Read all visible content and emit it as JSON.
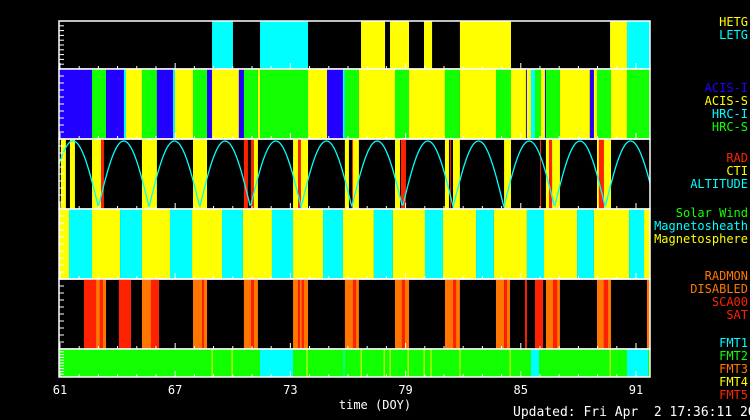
{
  "colors": {
    "yellow": "#ffff00",
    "cyan": "#00ffff",
    "green": "#11ff00",
    "blue": "#2200ff",
    "red": "#ff2200",
    "orange": "#ff7700",
    "white": "#ffffff"
  },
  "chart_data": {
    "type": "timeline",
    "xlabel": "time (DOY)",
    "xlim": [
      60.95,
      91.73
    ],
    "xticks": [
      61,
      67,
      73,
      79,
      85,
      91
    ],
    "updated": "Updated: Fri Apr  2 17:36:11 2004",
    "panels": [
      {
        "name": "grating",
        "legend": [
          {
            "label": "HETG",
            "color": "yellow"
          },
          {
            "label": "LETG",
            "color": "cyan"
          }
        ],
        "segments": [
          {
            "s": 68.92,
            "e": 70.01,
            "c": "cyan"
          },
          {
            "s": 71.42,
            "e": 73.92,
            "c": "cyan"
          },
          {
            "s": 76.68,
            "e": 77.93,
            "c": "yellow"
          },
          {
            "s": 78.19,
            "e": 79.18,
            "c": "yellow"
          },
          {
            "s": 79.96,
            "e": 80.38,
            "c": "yellow"
          },
          {
            "s": 81.83,
            "e": 84.49,
            "c": "yellow"
          },
          {
            "s": 89.65,
            "e": 90.53,
            "c": "yellow"
          },
          {
            "s": 90.53,
            "e": 91.73,
            "c": "cyan"
          }
        ]
      },
      {
        "name": "instrument",
        "legend": [
          {
            "label": "ACIS-I",
            "color": "blue"
          },
          {
            "label": "ACIS-S",
            "color": "yellow"
          },
          {
            "label": "HRC-I",
            "color": "cyan"
          },
          {
            "label": "HRC-S",
            "color": "green"
          }
        ],
        "segments": [
          {
            "s": 60.95,
            "e": 62.67,
            "c": "blue"
          },
          {
            "s": 62.67,
            "e": 63.4,
            "c": "green"
          },
          {
            "s": 63.4,
            "e": 64.33,
            "c": "blue"
          },
          {
            "s": 64.33,
            "e": 64.44,
            "c": "cyan"
          },
          {
            "s": 64.44,
            "e": 65.27,
            "c": "yellow"
          },
          {
            "s": 65.27,
            "e": 66.05,
            "c": "green"
          },
          {
            "s": 66.05,
            "e": 66.89,
            "c": "blue"
          },
          {
            "s": 66.89,
            "e": 66.99,
            "c": "cyan"
          },
          {
            "s": 66.99,
            "e": 67.93,
            "c": "yellow"
          },
          {
            "s": 67.93,
            "e": 68.66,
            "c": "green"
          },
          {
            "s": 68.66,
            "e": 68.92,
            "c": "blue"
          },
          {
            "s": 68.92,
            "e": 70.32,
            "c": "yellow"
          },
          {
            "s": 70.32,
            "e": 70.58,
            "c": "blue"
          },
          {
            "s": 70.58,
            "e": 71.31,
            "c": "green"
          },
          {
            "s": 71.31,
            "e": 71.42,
            "c": "yellow"
          },
          {
            "s": 71.42,
            "e": 73.92,
            "c": "green"
          },
          {
            "s": 73.92,
            "e": 74.91,
            "c": "yellow"
          },
          {
            "s": 74.91,
            "e": 75.74,
            "c": "blue"
          },
          {
            "s": 75.74,
            "e": 75.84,
            "c": "cyan"
          },
          {
            "s": 75.84,
            "e": 76.57,
            "c": "green"
          },
          {
            "s": 76.57,
            "e": 78.45,
            "c": "yellow"
          },
          {
            "s": 78.45,
            "e": 79.18,
            "c": "green"
          },
          {
            "s": 79.18,
            "e": 81.05,
            "c": "yellow"
          },
          {
            "s": 81.05,
            "e": 81.83,
            "c": "green"
          },
          {
            "s": 81.83,
            "e": 83.71,
            "c": "yellow"
          },
          {
            "s": 83.71,
            "e": 84.49,
            "c": "green"
          },
          {
            "s": 84.49,
            "e": 85.27,
            "c": "yellow"
          },
          {
            "s": 85.27,
            "e": 85.32,
            "c": "blue"
          },
          {
            "s": 85.32,
            "e": 85.53,
            "c": "yellow"
          },
          {
            "s": 85.53,
            "e": 85.74,
            "c": "cyan"
          },
          {
            "s": 85.74,
            "e": 86.05,
            "c": "green"
          },
          {
            "s": 86.05,
            "e": 86.26,
            "c": "yellow"
          },
          {
            "s": 86.26,
            "e": 86.31,
            "c": "blue"
          },
          {
            "s": 86.31,
            "e": 87.04,
            "c": "green"
          },
          {
            "s": 87.04,
            "e": 88.6,
            "c": "yellow"
          },
          {
            "s": 88.6,
            "e": 88.81,
            "c": "blue"
          },
          {
            "s": 88.81,
            "e": 88.97,
            "c": "yellow"
          },
          {
            "s": 88.97,
            "e": 89.7,
            "c": "green"
          },
          {
            "s": 89.7,
            "e": 90.53,
            "c": "yellow"
          },
          {
            "s": 90.53,
            "e": 91.73,
            "c": "green"
          }
        ]
      },
      {
        "name": "radiation",
        "legend": [
          {
            "label": "RAD",
            "color": "red"
          },
          {
            "label": "CTI",
            "color": "yellow"
          },
          {
            "label": "ALTITUDE",
            "color": "cyan"
          }
        ],
        "altitude_model": {
          "period_days": 2.64,
          "trough_doy": 63.0
        },
        "segments": [
          {
            "s": 61.05,
            "e": 61.31,
            "c": "yellow"
          },
          {
            "s": 61.52,
            "e": 61.78,
            "c": "yellow"
          },
          {
            "s": 62.67,
            "e": 63.14,
            "c": "yellow"
          },
          {
            "s": 63.14,
            "e": 63.29,
            "c": "red"
          },
          {
            "s": 65.27,
            "e": 66.05,
            "c": "yellow"
          },
          {
            "s": 67.93,
            "e": 68.66,
            "c": "yellow"
          },
          {
            "s": 70.58,
            "e": 70.79,
            "c": "red"
          },
          {
            "s": 70.95,
            "e": 71.1,
            "c": "red"
          },
          {
            "s": 71.1,
            "e": 71.31,
            "c": "yellow"
          },
          {
            "s": 73.14,
            "e": 73.4,
            "c": "yellow"
          },
          {
            "s": 73.4,
            "e": 73.55,
            "c": "red"
          },
          {
            "s": 73.55,
            "e": 73.92,
            "c": "yellow"
          },
          {
            "s": 75.84,
            "e": 76.05,
            "c": "yellow"
          },
          {
            "s": 76.21,
            "e": 76.26,
            "c": "red"
          },
          {
            "s": 76.26,
            "e": 76.57,
            "c": "yellow"
          },
          {
            "s": 78.45,
            "e": 78.71,
            "c": "yellow"
          },
          {
            "s": 78.76,
            "e": 79.02,
            "c": "red"
          },
          {
            "s": 81.05,
            "e": 81.26,
            "c": "yellow"
          },
          {
            "s": 81.31,
            "e": 81.36,
            "c": "red"
          },
          {
            "s": 81.47,
            "e": 81.83,
            "c": "yellow"
          },
          {
            "s": 84.13,
            "e": 84.49,
            "c": "yellow"
          },
          {
            "s": 86.0,
            "e": 86.05,
            "c": "red"
          },
          {
            "s": 86.31,
            "e": 86.47,
            "c": "yellow"
          },
          {
            "s": 86.47,
            "e": 86.63,
            "c": "red"
          },
          {
            "s": 86.63,
            "e": 87.04,
            "c": "yellow"
          },
          {
            "s": 88.97,
            "e": 89.07,
            "c": "yellow"
          },
          {
            "s": 89.07,
            "e": 89.33,
            "c": "red"
          },
          {
            "s": 89.33,
            "e": 89.7,
            "c": "yellow"
          }
        ]
      },
      {
        "name": "environment",
        "legend": [
          {
            "label": "Solar Wind",
            "color": "green"
          },
          {
            "label": "Magnetosheath",
            "color": "cyan"
          },
          {
            "label": "Magnetosphere",
            "color": "yellow"
          }
        ],
        "segments": [
          {
            "s": 60.95,
            "e": 61.47,
            "c": "yellow"
          },
          {
            "s": 61.47,
            "e": 62.67,
            "c": "cyan"
          },
          {
            "s": 62.67,
            "e": 64.13,
            "c": "yellow"
          },
          {
            "s": 64.13,
            "e": 65.27,
            "c": "cyan"
          },
          {
            "s": 65.27,
            "e": 66.73,
            "c": "yellow"
          },
          {
            "s": 66.73,
            "e": 67.88,
            "c": "cyan"
          },
          {
            "s": 67.88,
            "e": 69.44,
            "c": "yellow"
          },
          {
            "s": 69.44,
            "e": 70.53,
            "c": "cyan"
          },
          {
            "s": 70.53,
            "e": 72.04,
            "c": "yellow"
          },
          {
            "s": 72.04,
            "e": 73.14,
            "c": "cyan"
          },
          {
            "s": 73.14,
            "e": 74.7,
            "c": "yellow"
          },
          {
            "s": 74.7,
            "e": 75.74,
            "c": "cyan"
          },
          {
            "s": 75.74,
            "e": 77.35,
            "c": "yellow"
          },
          {
            "s": 77.35,
            "e": 78.34,
            "c": "cyan"
          },
          {
            "s": 78.34,
            "e": 80.01,
            "c": "yellow"
          },
          {
            "s": 80.01,
            "e": 80.95,
            "c": "cyan"
          },
          {
            "s": 80.95,
            "e": 82.67,
            "c": "yellow"
          },
          {
            "s": 82.67,
            "e": 83.6,
            "c": "cyan"
          },
          {
            "s": 83.6,
            "e": 85.32,
            "c": "yellow"
          },
          {
            "s": 85.32,
            "e": 86.21,
            "c": "cyan"
          },
          {
            "s": 86.21,
            "e": 87.93,
            "c": "yellow"
          },
          {
            "s": 87.93,
            "e": 88.81,
            "c": "cyan"
          },
          {
            "s": 88.81,
            "e": 90.64,
            "c": "yellow"
          },
          {
            "s": 90.64,
            "e": 91.42,
            "c": "cyan"
          },
          {
            "s": 91.42,
            "e": 91.73,
            "c": "yellow"
          }
        ]
      },
      {
        "name": "radmon",
        "legend": [
          {
            "label": "RADMON",
            "color": "orange"
          },
          {
            "label": "DISABLED",
            "color": "orange"
          },
          {
            "label": "SCA00",
            "color": "red"
          },
          {
            "label": "SAT",
            "color": "red"
          }
        ],
        "segments": [
          {
            "s": 62.25,
            "e": 62.88,
            "c": "red"
          },
          {
            "s": 62.88,
            "e": 63.08,
            "c": "orange"
          },
          {
            "s": 63.08,
            "e": 63.24,
            "c": "red"
          },
          {
            "s": 63.24,
            "e": 63.4,
            "c": "orange"
          },
          {
            "s": 64.07,
            "e": 64.7,
            "c": "red"
          },
          {
            "s": 65.27,
            "e": 65.74,
            "c": "orange"
          },
          {
            "s": 65.74,
            "e": 66.16,
            "c": "red"
          },
          {
            "s": 67.93,
            "e": 68.4,
            "c": "orange"
          },
          {
            "s": 68.4,
            "e": 68.5,
            "c": "red"
          },
          {
            "s": 68.5,
            "e": 68.66,
            "c": "orange"
          },
          {
            "s": 70.58,
            "e": 70.95,
            "c": "orange"
          },
          {
            "s": 70.95,
            "e": 71.1,
            "c": "red"
          },
          {
            "s": 71.1,
            "e": 71.31,
            "c": "orange"
          },
          {
            "s": 73.14,
            "e": 73.4,
            "c": "orange"
          },
          {
            "s": 73.4,
            "e": 73.5,
            "c": "red"
          },
          {
            "s": 73.5,
            "e": 73.6,
            "c": "orange"
          },
          {
            "s": 73.6,
            "e": 73.71,
            "c": "red"
          },
          {
            "s": 73.71,
            "e": 73.92,
            "c": "orange"
          },
          {
            "s": 75.84,
            "e": 76.26,
            "c": "orange"
          },
          {
            "s": 76.26,
            "e": 76.42,
            "c": "red"
          },
          {
            "s": 76.42,
            "e": 76.57,
            "c": "orange"
          },
          {
            "s": 78.45,
            "e": 78.81,
            "c": "orange"
          },
          {
            "s": 78.81,
            "e": 78.97,
            "c": "red"
          },
          {
            "s": 78.97,
            "e": 79.18,
            "c": "orange"
          },
          {
            "s": 81.05,
            "e": 81.47,
            "c": "orange"
          },
          {
            "s": 81.47,
            "e": 81.63,
            "c": "red"
          },
          {
            "s": 81.63,
            "e": 81.83,
            "c": "orange"
          },
          {
            "s": 83.71,
            "e": 84.13,
            "c": "orange"
          },
          {
            "s": 84.13,
            "e": 84.28,
            "c": "red"
          },
          {
            "s": 84.28,
            "e": 84.44,
            "c": "orange"
          },
          {
            "s": 85.22,
            "e": 85.32,
            "c": "red"
          },
          {
            "s": 85.74,
            "e": 86.16,
            "c": "red"
          },
          {
            "s": 86.31,
            "e": 86.68,
            "c": "orange"
          },
          {
            "s": 86.68,
            "e": 86.89,
            "c": "red"
          },
          {
            "s": 86.89,
            "e": 87.04,
            "c": "orange"
          },
          {
            "s": 88.97,
            "e": 89.33,
            "c": "orange"
          },
          {
            "s": 89.33,
            "e": 89.54,
            "c": "red"
          },
          {
            "s": 89.54,
            "e": 89.7,
            "c": "orange"
          },
          {
            "s": 91.57,
            "e": 91.73,
            "c": "orange"
          }
        ]
      },
      {
        "name": "format",
        "legend": [
          {
            "label": "FMT1",
            "color": "cyan"
          },
          {
            "label": "FMT2",
            "color": "green"
          },
          {
            "label": "FMT3",
            "color": "orange"
          },
          {
            "label": "FMT4",
            "color": "yellow"
          },
          {
            "label": "FMT5",
            "color": "red"
          }
        ],
        "segments": [
          {
            "s": 60.95,
            "e": 91.73,
            "c": "green"
          },
          {
            "s": 71.42,
            "e": 73.14,
            "c": "cyan"
          },
          {
            "s": 85.53,
            "e": 85.95,
            "c": "cyan"
          },
          {
            "s": 90.53,
            "e": 91.63,
            "c": "cyan"
          },
          {
            "s": 68.9,
            "e": 68.95,
            "c": "yellow"
          },
          {
            "s": 69.94,
            "e": 69.99,
            "c": "yellow"
          },
          {
            "s": 73.84,
            "e": 73.89,
            "c": "yellow"
          },
          {
            "s": 75.77,
            "e": 75.82,
            "c": "cyan"
          },
          {
            "s": 76.66,
            "e": 76.71,
            "c": "yellow"
          },
          {
            "s": 77.86,
            "e": 77.91,
            "c": "yellow"
          },
          {
            "s": 78.17,
            "e": 78.22,
            "c": "yellow"
          },
          {
            "s": 79.11,
            "e": 79.16,
            "c": "yellow"
          },
          {
            "s": 79.94,
            "e": 79.99,
            "c": "yellow"
          },
          {
            "s": 80.3,
            "e": 80.35,
            "c": "yellow"
          },
          {
            "s": 81.81,
            "e": 81.86,
            "c": "yellow"
          },
          {
            "s": 84.42,
            "e": 84.47,
            "c": "yellow"
          },
          {
            "s": 89.63,
            "e": 89.68,
            "c": "yellow"
          }
        ]
      }
    ]
  }
}
